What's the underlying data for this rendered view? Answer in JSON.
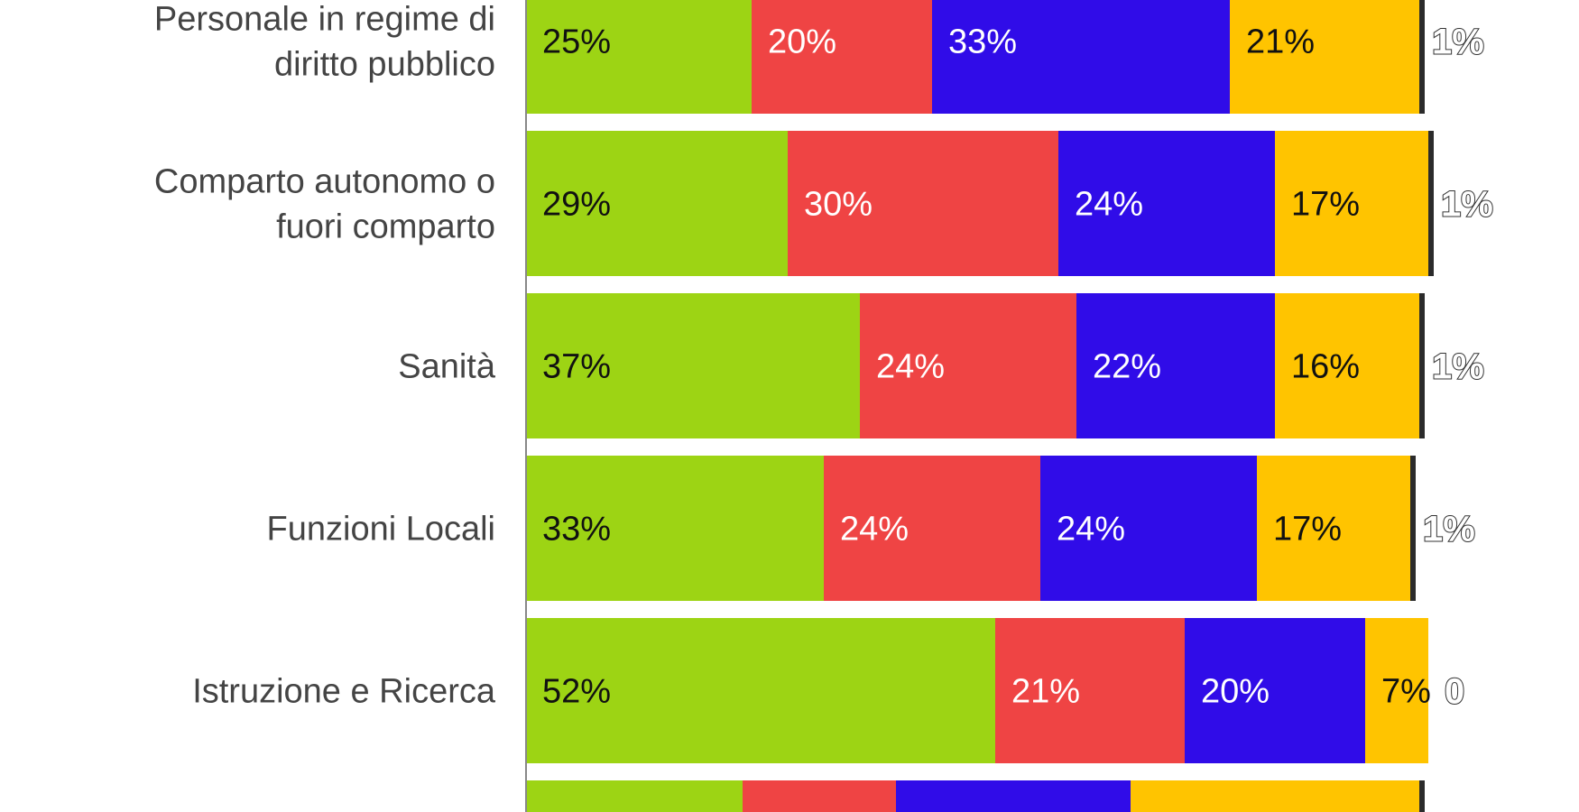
{
  "chart_data": {
    "type": "bar",
    "orientation": "horizontal",
    "stacked": true,
    "grid": false,
    "legend": "none",
    "xlim": [
      0,
      100
    ],
    "categories": [
      "Personale in regime di diritto pubblico",
      "Comparto autonomo o fuori comparto",
      "Sanità",
      "Funzioni Locali",
      "Istruzione e Ricerca",
      ""
    ],
    "category_lines": [
      [
        "Personale in regime di",
        "diritto pubblico"
      ],
      [
        "Comparto autonomo o",
        "fuori comparto"
      ],
      [
        "Sanità"
      ],
      [
        "Funzioni Locali"
      ],
      [
        "Istruzione e Ricerca"
      ],
      []
    ],
    "series": [
      {
        "color": "#9dd414",
        "label_color": "#111111",
        "values": [
          25,
          29,
          37,
          33,
          52,
          24
        ],
        "labels": [
          "25%",
          "29%",
          "37%",
          "33%",
          "52%",
          ""
        ]
      },
      {
        "color": "#ef4444",
        "label_color": "#ffffff",
        "values": [
          20,
          30,
          24,
          24,
          21,
          17
        ],
        "labels": [
          "20%",
          "30%",
          "24%",
          "24%",
          "21%",
          ""
        ]
      },
      {
        "color": "#300ce8",
        "label_color": "#ffffff",
        "values": [
          33,
          24,
          22,
          24,
          20,
          26
        ],
        "labels": [
          "33%",
          "24%",
          "22%",
          "24%",
          "20%",
          ""
        ]
      },
      {
        "color": "#ffc400",
        "label_color": "#111111",
        "values": [
          21,
          17,
          16,
          17,
          7,
          32
        ],
        "labels": [
          "21%",
          "17%",
          "16%",
          "17%",
          "7%",
          ""
        ]
      },
      {
        "color": "#2b2b2b",
        "label_color": "#ffffff",
        "values": [
          1,
          1,
          1,
          1,
          0,
          1
        ],
        "labels": [
          "1%",
          "1%",
          "1%",
          "1%",
          "0",
          ""
        ],
        "label_outside": true
      }
    ]
  }
}
